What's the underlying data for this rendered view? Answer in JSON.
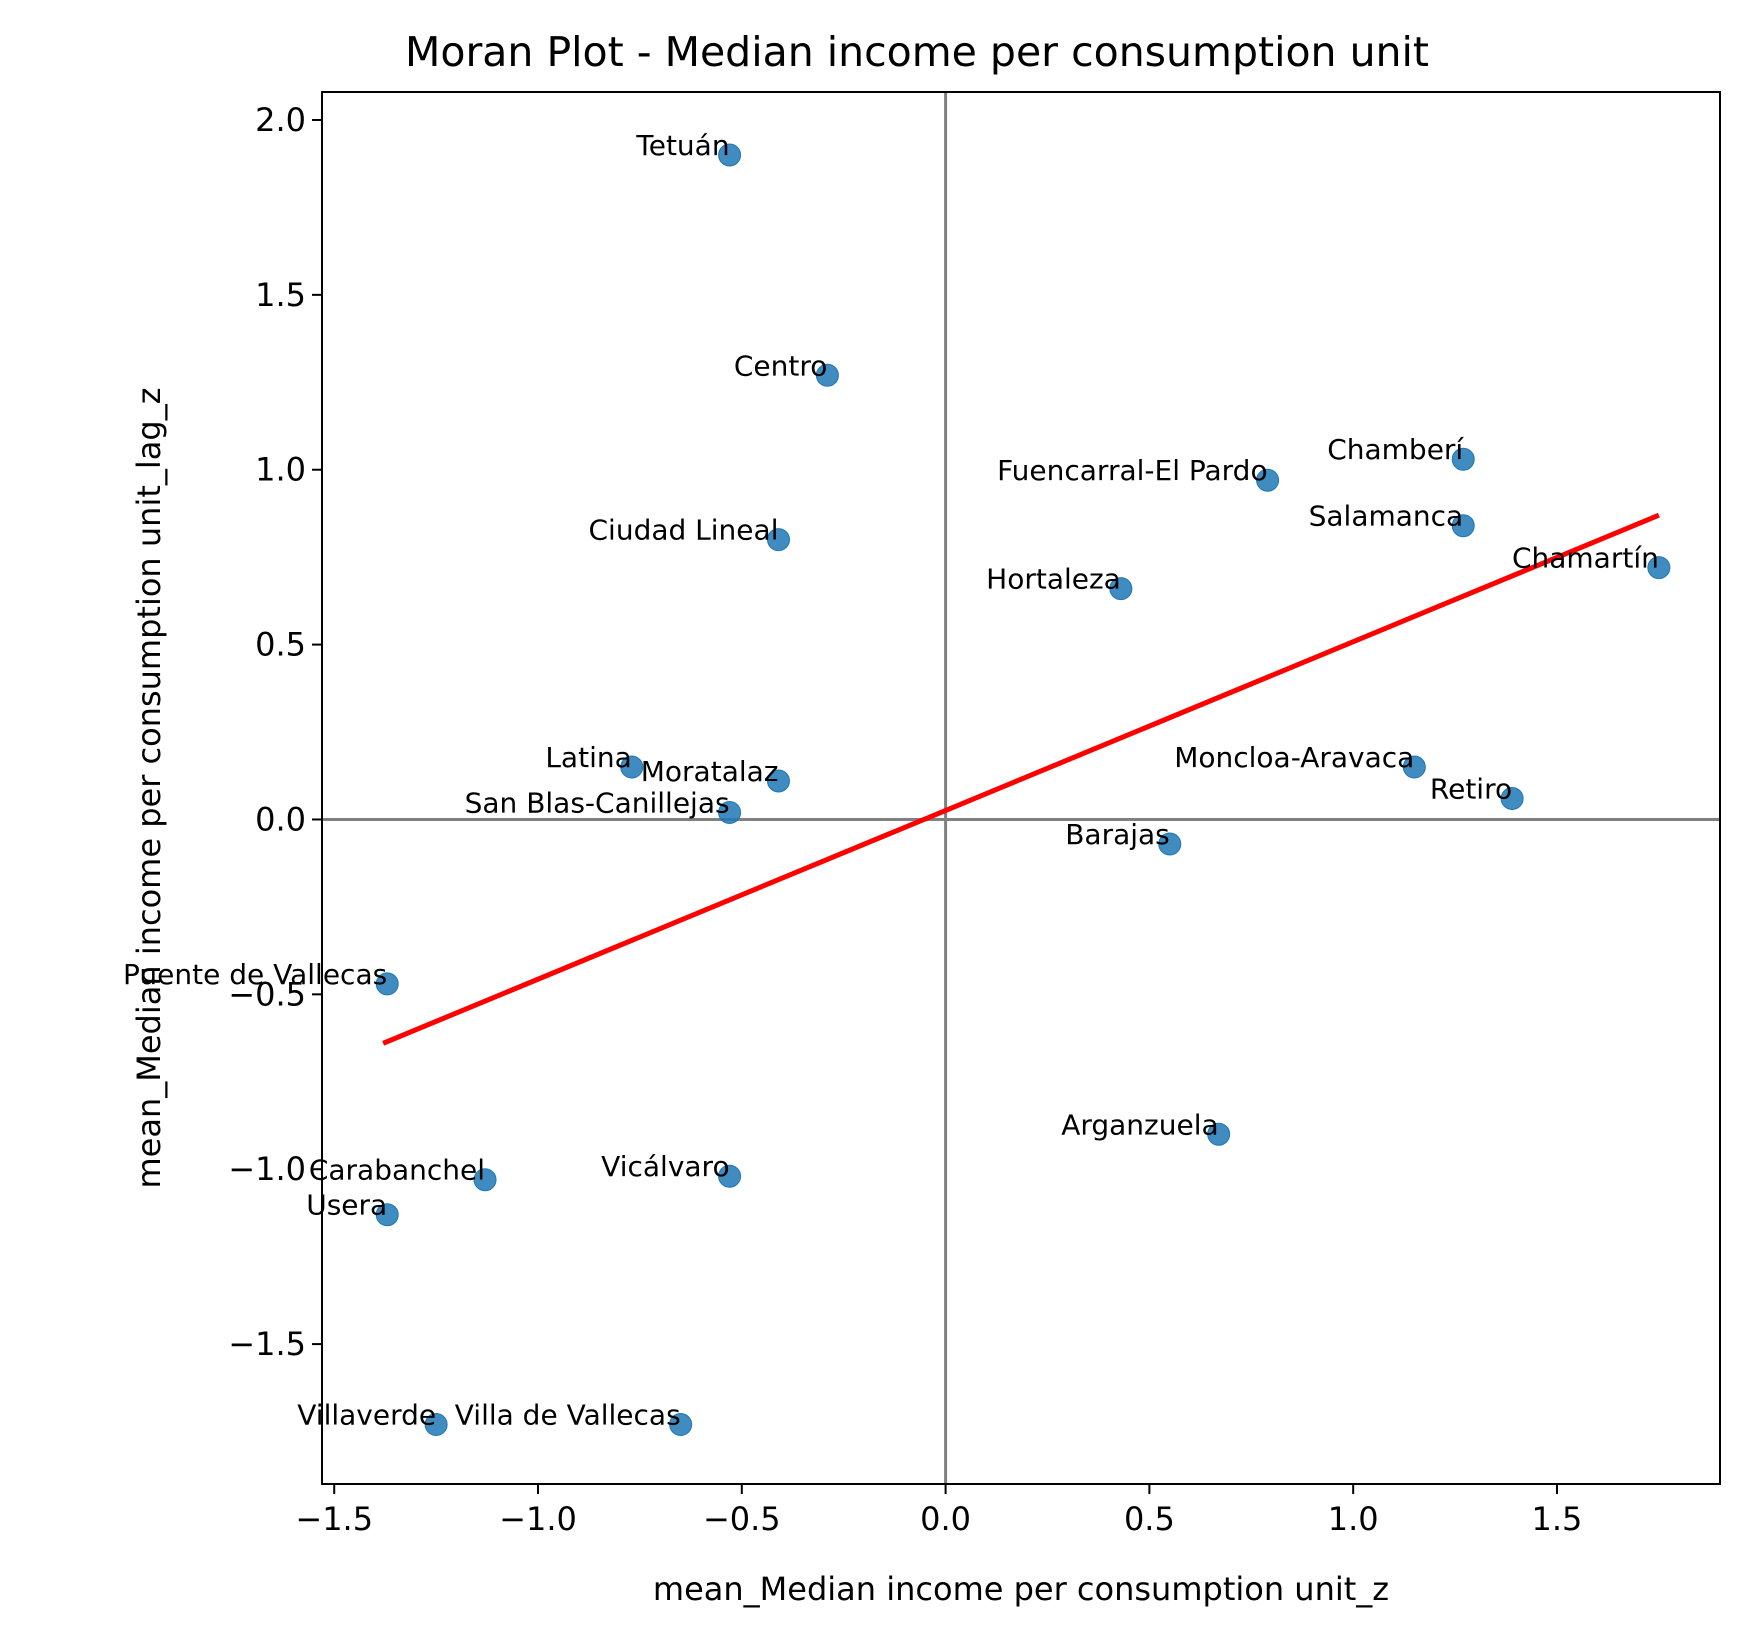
{
  "chart_data": {
    "type": "scatter",
    "title": "Moran Plot - Median income per consumption unit",
    "xlabel": "mean_Median income per consumption unit_z",
    "ylabel": "mean_Median income per consumption unit_lag_z",
    "xlim": [
      -1.53,
      1.9
    ],
    "ylim": [
      -1.9,
      2.08
    ],
    "xticks": [
      -1.5,
      -1.0,
      -0.5,
      0.0,
      0.5,
      1.0,
      1.5
    ],
    "yticks": [
      -1.5,
      -1.0,
      -0.5,
      0.0,
      0.5,
      1.0,
      1.5,
      2.0
    ],
    "xtick_labels": [
      "−1.5",
      "−1.0",
      "−0.5",
      "0.0",
      "0.5",
      "1.0",
      "1.5"
    ],
    "ytick_labels": [
      "−1.5",
      "−1.0",
      "−0.5",
      "0.0",
      "0.5",
      "1.0",
      "1.5",
      "2.0"
    ],
    "grid": false,
    "point_color": "#1f77b4",
    "fit_color": "#ff0000",
    "reference_line_color": "#808080",
    "points": [
      {
        "label": "Tetuán",
        "x": -0.53,
        "y": 1.9
      },
      {
        "label": "Centro",
        "x": -0.29,
        "y": 1.27
      },
      {
        "label": "Chamberí",
        "x": 1.27,
        "y": 1.03
      },
      {
        "label": "Fuencarral-El Pardo",
        "x": 0.79,
        "y": 0.97
      },
      {
        "label": "Ciudad Lineal",
        "x": -0.41,
        "y": 0.8
      },
      {
        "label": "Salamanca",
        "x": 1.27,
        "y": 0.84
      },
      {
        "label": "Chamartín",
        "x": 1.75,
        "y": 0.72
      },
      {
        "label": "Hortaleza",
        "x": 0.43,
        "y": 0.66
      },
      {
        "label": "Latina",
        "x": -0.77,
        "y": 0.15
      },
      {
        "label": "Moratalaz",
        "x": -0.41,
        "y": 0.11
      },
      {
        "label": "San Blas-Canillejas",
        "x": -0.53,
        "y": 0.02
      },
      {
        "label": "Moncloa-Aravaca",
        "x": 1.15,
        "y": 0.15
      },
      {
        "label": "Retiro",
        "x": 1.39,
        "y": 0.06
      },
      {
        "label": "Barajas",
        "x": 0.55,
        "y": -0.07
      },
      {
        "label": "Puente de Vallecas",
        "x": -1.37,
        "y": -0.47
      },
      {
        "label": "Arganzuela",
        "x": 0.67,
        "y": -0.9
      },
      {
        "label": "Carabanchel",
        "x": -1.13,
        "y": -1.03
      },
      {
        "label": "Vicálvaro",
        "x": -0.53,
        "y": -1.02
      },
      {
        "label": "Usera",
        "x": -1.37,
        "y": -1.13
      },
      {
        "label": "Villaverde",
        "x": -1.25,
        "y": -1.73
      },
      {
        "label": "Villa de Vallecas",
        "x": -0.65,
        "y": -1.73
      }
    ],
    "fit_line": {
      "x": [
        -1.38,
        1.75
      ],
      "y": [
        -0.64,
        0.87
      ]
    },
    "reference_lines": {
      "x": 0.0,
      "y": 0.0
    }
  }
}
